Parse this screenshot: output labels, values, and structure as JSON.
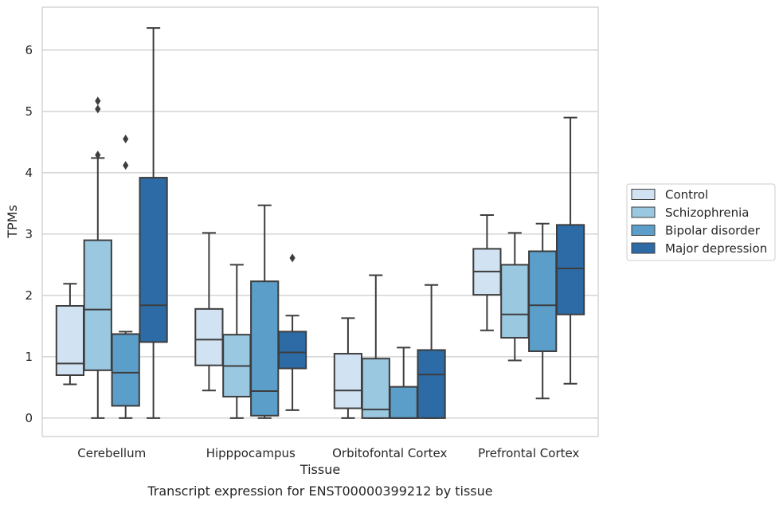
{
  "caption": "Transcript expression for ENST00000399212 by tissue",
  "chart_data": {
    "type": "box",
    "xlabel": "Tissue",
    "ylabel": "TPMs",
    "ylim": [
      -0.3,
      6.7
    ],
    "yticks": [
      0,
      1,
      2,
      3,
      4,
      5,
      6
    ],
    "grid": "horizontal",
    "legend_position": "outside-right",
    "categories": [
      "Cerebellum",
      "Hipppocampus",
      "Orbitofontal Cortex",
      "Prefrontal Cortex"
    ],
    "series": [
      {
        "name": "Control",
        "color": "#d1e2f2",
        "boxes": [
          {
            "whislo": 0.55,
            "q1": 0.7,
            "med": 0.89,
            "q3": 1.83,
            "whishi": 2.19,
            "fliers": []
          },
          {
            "whislo": 0.45,
            "q1": 0.86,
            "med": 1.28,
            "q3": 1.78,
            "whishi": 3.02,
            "fliers": []
          },
          {
            "whislo": 0.0,
            "q1": 0.16,
            "med": 0.45,
            "q3": 1.05,
            "whishi": 1.63,
            "fliers": []
          },
          {
            "whislo": 1.43,
            "q1": 2.01,
            "med": 2.39,
            "q3": 2.76,
            "whishi": 3.31,
            "fliers": []
          }
        ]
      },
      {
        "name": "Schizophrenia",
        "color": "#9ac8e0",
        "boxes": [
          {
            "whislo": 0.0,
            "q1": 0.78,
            "med": 1.77,
            "q3": 2.9,
            "whishi": 4.24,
            "fliers": [
              4.29,
              5.04,
              5.17
            ]
          },
          {
            "whislo": 0.0,
            "q1": 0.35,
            "med": 0.85,
            "q3": 1.36,
            "whishi": 2.5,
            "fliers": []
          },
          {
            "whislo": 0.0,
            "q1": 0.0,
            "med": 0.14,
            "q3": 0.97,
            "whishi": 2.33,
            "fliers": []
          },
          {
            "whislo": 0.94,
            "q1": 1.31,
            "med": 1.69,
            "q3": 2.5,
            "whishi": 3.02,
            "fliers": []
          }
        ]
      },
      {
        "name": "Bipolar disorder",
        "color": "#5a9ec9",
        "boxes": [
          {
            "whislo": 0.0,
            "q1": 0.2,
            "med": 0.74,
            "q3": 1.37,
            "whishi": 1.41,
            "fliers": [
              4.12,
              4.55
            ]
          },
          {
            "whislo": 0.0,
            "q1": 0.04,
            "med": 0.44,
            "q3": 2.23,
            "whishi": 3.47,
            "fliers": []
          },
          {
            "whislo": 0.0,
            "q1": 0.0,
            "med": 0.0,
            "q3": 0.51,
            "whishi": 1.15,
            "fliers": []
          },
          {
            "whislo": 0.32,
            "q1": 1.09,
            "med": 1.84,
            "q3": 2.72,
            "whishi": 3.17,
            "fliers": []
          }
        ]
      },
      {
        "name": "Major depression",
        "color": "#2d6ba6",
        "boxes": [
          {
            "whislo": 0.0,
            "q1": 1.24,
            "med": 1.84,
            "q3": 3.92,
            "whishi": 6.36,
            "fliers": []
          },
          {
            "whislo": 0.13,
            "q1": 0.81,
            "med": 1.07,
            "q3": 1.41,
            "whishi": 1.67,
            "fliers": [
              2.61
            ]
          },
          {
            "whislo": 0.0,
            "q1": 0.0,
            "med": 0.71,
            "q3": 1.11,
            "whishi": 2.17,
            "fliers": []
          },
          {
            "whislo": 0.56,
            "q1": 1.69,
            "med": 2.44,
            "q3": 3.15,
            "whishi": 4.9,
            "fliers": []
          }
        ]
      }
    ]
  },
  "colors": {
    "box_edge": "#3d3d3d",
    "grid": "#cccccc",
    "frame": "#cccccc"
  }
}
